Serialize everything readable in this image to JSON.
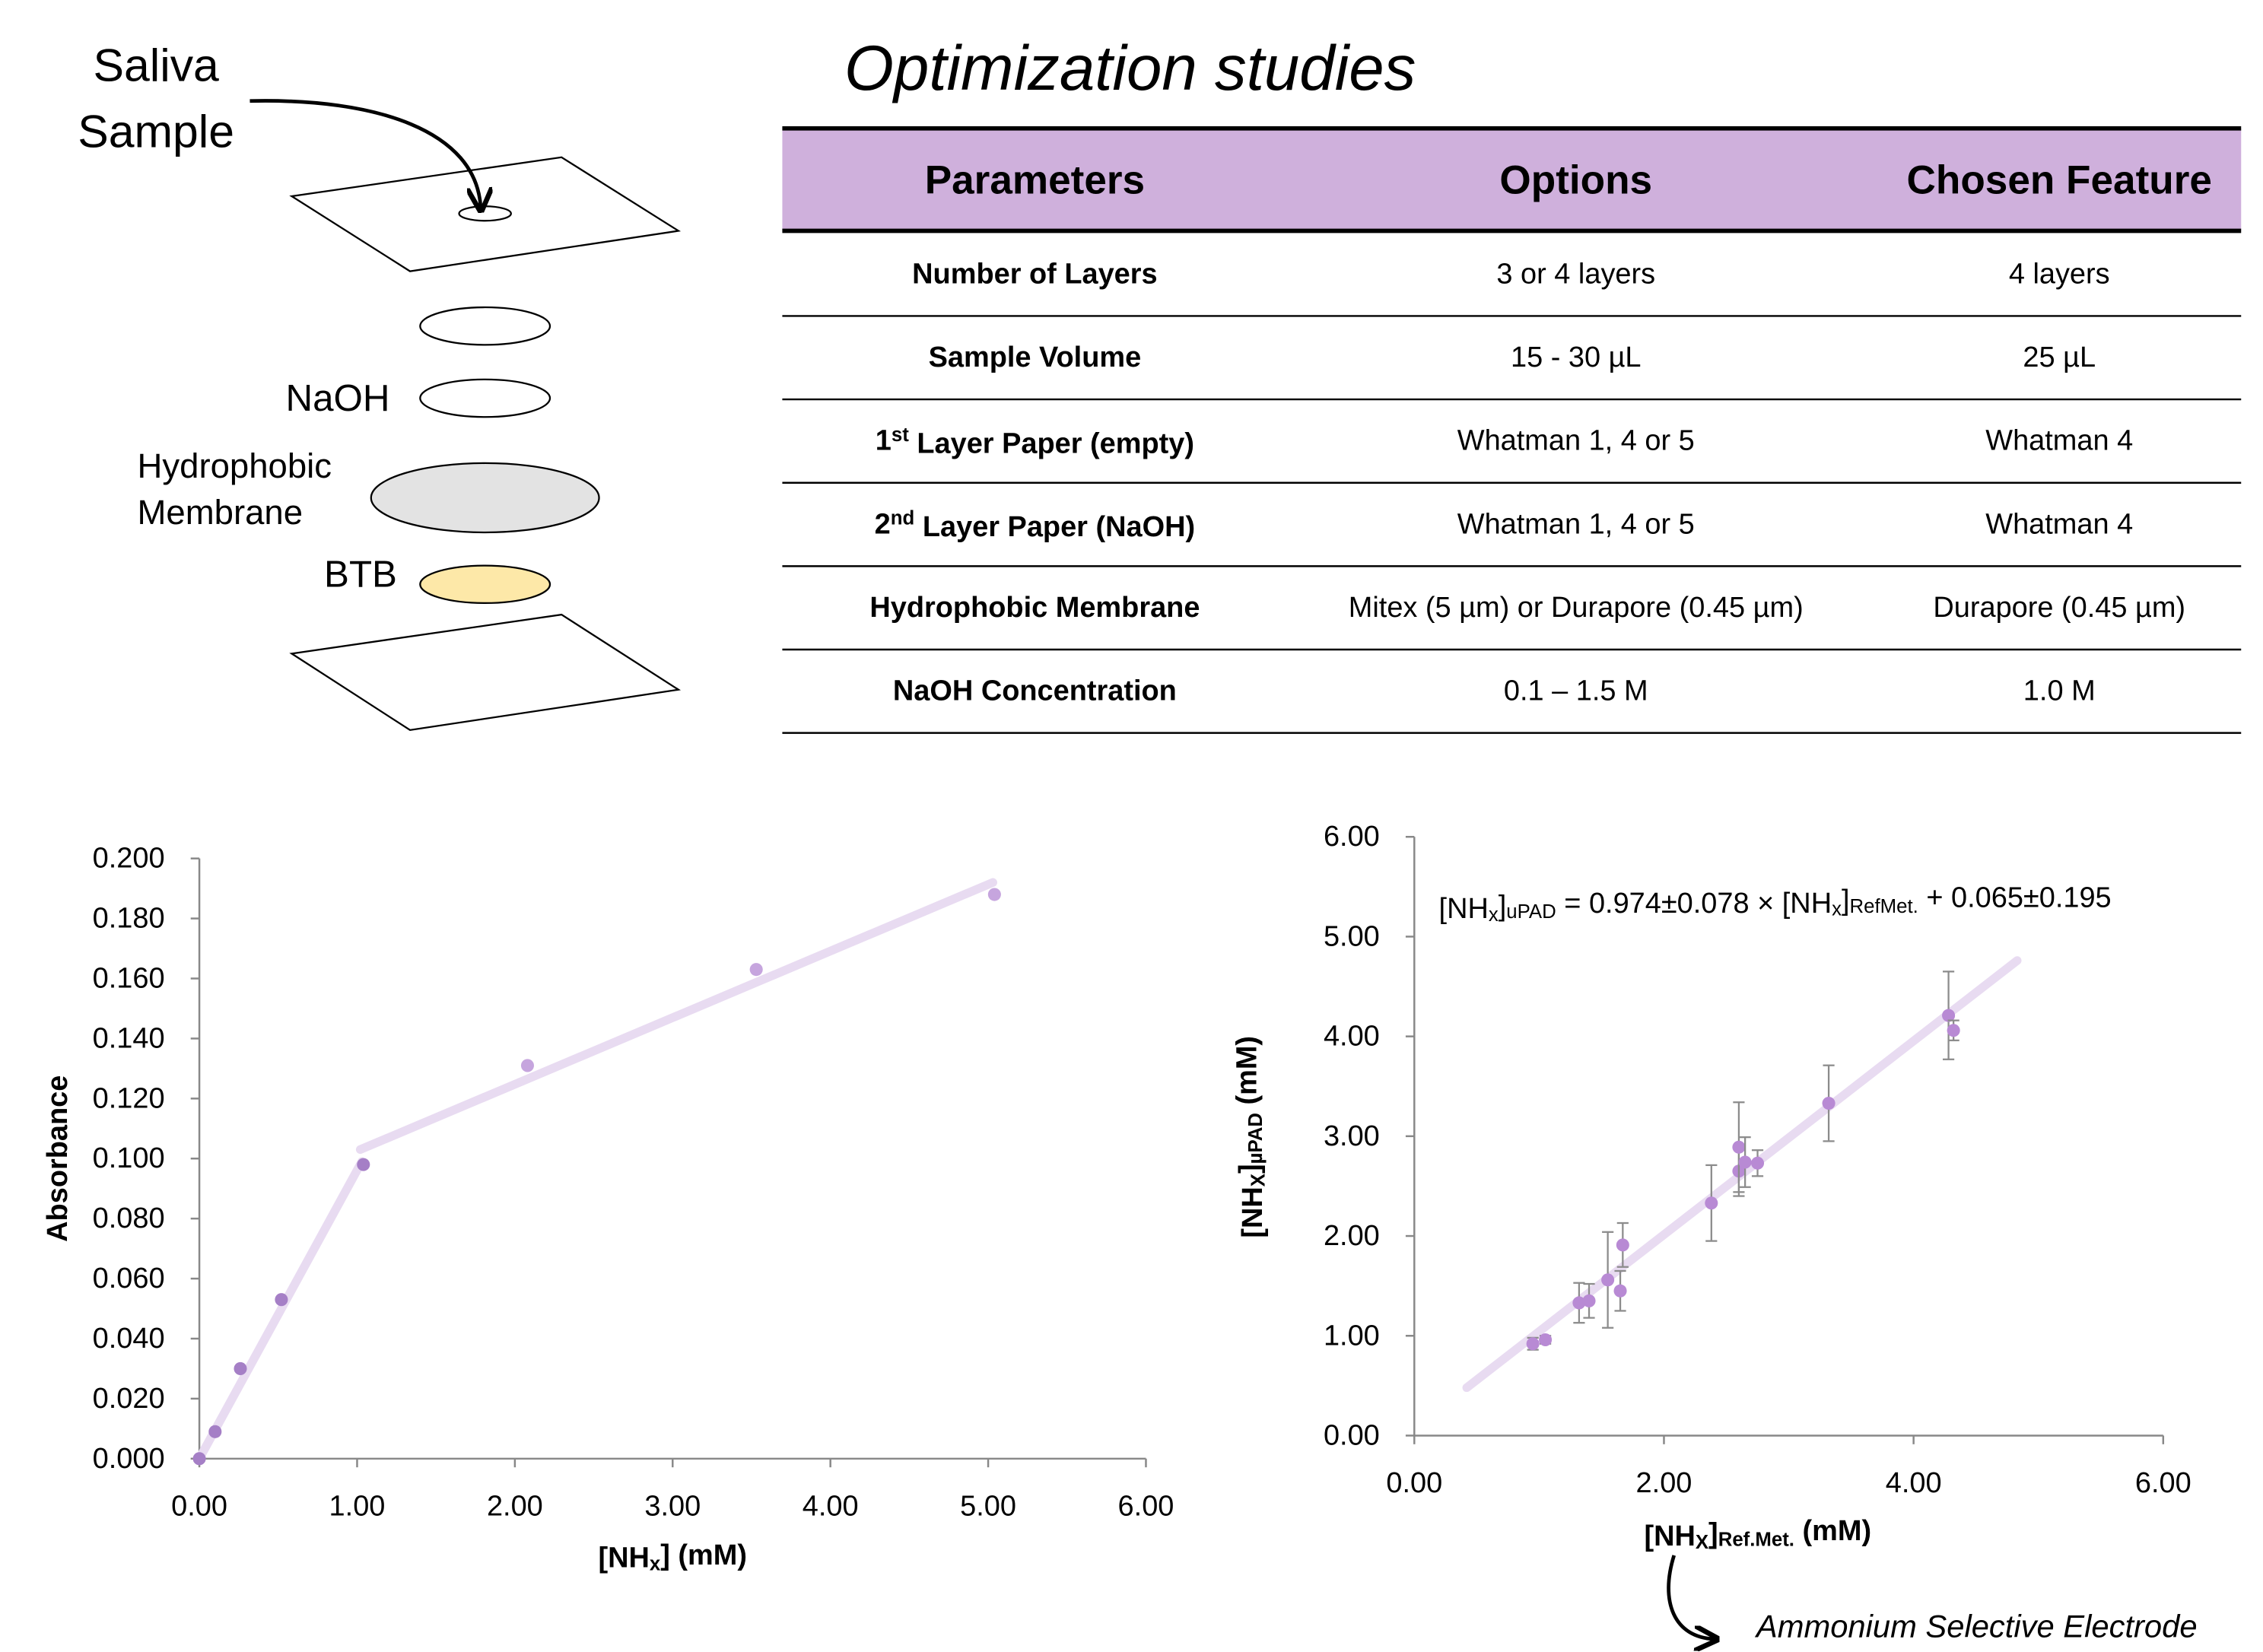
{
  "diagram": {
    "labels": {
      "saliva": "Saliva",
      "sample": "Sample",
      "naoh": "NaOH",
      "hydrophobic": "Hydrophobic",
      "membrane": "Membrane",
      "btb": "BTB"
    }
  },
  "table": {
    "title": "Optimization studies",
    "header": [
      "Parameters",
      "Options",
      "Chosen Feature"
    ],
    "rows": [
      [
        "Number of Layers",
        "3 or 4 layers",
        "4 layers"
      ],
      [
        "Sample Volume",
        "15 - 30 µL",
        "25 µL"
      ],
      [
        [
          "1",
          "st",
          " Layer Paper (empty)"
        ],
        "Whatman 1, 4 or 5",
        "Whatman 4"
      ],
      [
        [
          "2",
          "nd",
          " Layer Paper (NaOH)"
        ],
        "Whatman 1, 4 or 5",
        "Whatman 4"
      ],
      [
        "Hydrophobic Membrane",
        "Mitex (5 µm) or Durapore (0.45 µm)",
        "Durapore (0.45 µm)"
      ],
      [
        "NaOH Concentration",
        "0.1 – 1.5 M",
        "1.0 M"
      ]
    ]
  },
  "chart_data": [
    {
      "type": "scatter",
      "y_label": "Absorbance",
      "x_label": [
        "[NH",
        "x",
        "] (mM)"
      ],
      "x": [
        0,
        0.1,
        0.26,
        0.52,
        1.04,
        2.08,
        3.53,
        5.04
      ],
      "y": [
        0.0,
        0.009,
        0.03,
        0.053,
        0.098,
        0.131,
        0.163,
        0.188
      ],
      "point_colors": [
        "#a57fc6",
        "#a57fc6",
        "#a57fc6",
        "#a57fc6",
        "#a57fc6",
        "#c6a5de",
        "#c6a5de",
        "#c6a5de"
      ],
      "fits": [
        {
          "x": [
            0,
            1.03
          ],
          "y": [
            0,
            0.099
          ]
        },
        {
          "x": [
            1.02,
            5.03
          ],
          "y": [
            0.103,
            0.192
          ]
        }
      ],
      "fit_color": "#e8dbf1",
      "xlim": [
        0,
        6
      ],
      "xticks": [
        {
          "value": 0,
          "label": "0.00"
        },
        {
          "value": 1,
          "label": "1.00"
        },
        {
          "value": 2,
          "label": "2.00"
        },
        {
          "value": 3,
          "label": "3.00"
        },
        {
          "value": 4,
          "label": "4.00"
        },
        {
          "value": 5,
          "label": "5.00"
        },
        {
          "value": 6,
          "label": "6.00"
        }
      ],
      "ylim": [
        0,
        0.2
      ],
      "yticks": [
        {
          "value": 0,
          "label": "0.000"
        },
        {
          "value": 0.02,
          "label": "0.020"
        },
        {
          "value": 0.04,
          "label": "0.040"
        },
        {
          "value": 0.06,
          "label": "0.060"
        },
        {
          "value": 0.08,
          "label": "0.080"
        },
        {
          "value": 0.1,
          "label": "0.100"
        },
        {
          "value": 0.12,
          "label": "0.120"
        },
        {
          "value": 0.14,
          "label": "0.140"
        },
        {
          "value": 0.16,
          "label": "0.160"
        },
        {
          "value": 0.18,
          "label": "0.180"
        },
        {
          "value": 0.2,
          "label": "0.200"
        }
      ]
    },
    {
      "type": "scatter",
      "y_label": [
        "[NH",
        "X",
        "]",
        "µPAD",
        " (mM)"
      ],
      "x_label": [
        "[NH",
        "X",
        "]",
        "Ref.Met.",
        " (mM)"
      ],
      "equation": [
        "[NH",
        "x",
        "]",
        "uPAD",
        " = 0.974±0.078 × [NH",
        "x",
        "]",
        "RefMet.",
        " + 0.065±0.195"
      ],
      "annotation": "Ammonium Selective Electrode",
      "x": [
        0.95,
        1.05,
        1.32,
        1.4,
        1.55,
        1.65,
        1.67,
        2.38,
        2.6,
        2.6,
        2.65,
        2.75,
        3.32,
        4.28,
        4.32
      ],
      "y": [
        0.92,
        0.96,
        1.33,
        1.35,
        1.56,
        1.45,
        1.91,
        2.33,
        2.65,
        2.89,
        2.74,
        2.73,
        3.33,
        4.21,
        4.06
      ],
      "errors": [
        0.06,
        0.04,
        0.2,
        0.17,
        0.48,
        0.2,
        0.22,
        0.38,
        0.25,
        0.45,
        0.25,
        0.13,
        0.38,
        0.44,
        0.1
      ],
      "color": "#b88ad4",
      "error_color": "#8c8c8c",
      "fits": [
        {
          "x": [
            0.42,
            4.83
          ],
          "y": [
            0.48,
            4.76
          ]
        }
      ],
      "fit_color": "#e8dbf1",
      "xlim": [
        0,
        6
      ],
      "xticks": [
        {
          "value": 0,
          "label": "0.00"
        },
        {
          "value": 2,
          "label": "2.00"
        },
        {
          "value": 4,
          "label": "4.00"
        },
        {
          "value": 6,
          "label": "6.00"
        }
      ],
      "ylim": [
        0,
        6
      ],
      "yticks": [
        {
          "value": 0,
          "label": "0.00"
        },
        {
          "value": 1,
          "label": "1.00"
        },
        {
          "value": 2,
          "label": "2.00"
        },
        {
          "value": 3,
          "label": "3.00"
        },
        {
          "value": 4,
          "label": "4.00"
        },
        {
          "value": 5,
          "label": "5.00"
        },
        {
          "value": 6,
          "label": "6.00"
        }
      ]
    }
  ]
}
